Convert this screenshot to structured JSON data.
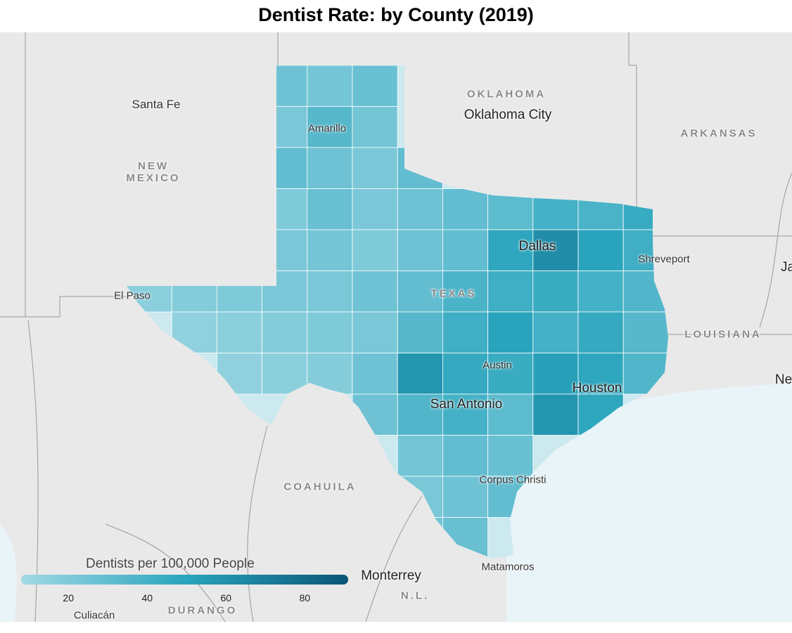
{
  "title": "Dentist Rate: by County (2019)",
  "places": [
    "Santa Fe",
    "NEW MEXICO",
    "OKLAHOMA",
    "Oklahoma City",
    "ARKANSAS",
    "Amarillo",
    "Dallas",
    "Shreveport",
    "El Paso",
    "TEXAS",
    "LOUISIANA",
    "Austin",
    "Houston",
    "San Antonio",
    "Corpus Christi",
    "Matamoros",
    "COAHUILA",
    "Monterrey",
    "N.L.",
    "DURANGO",
    "Culiacán",
    "Ja",
    "Ne"
  ],
  "legend": {
    "title": "Dentists per 100,000 People",
    "range": [
      8,
      91
    ],
    "ticks": [
      20,
      40,
      60,
      80
    ],
    "colors": [
      "#a2d9e5",
      "#2aa5bd",
      "#0b5577"
    ]
  },
  "cells": [
    [
      null,
      null,
      null,
      26,
      24,
      28,
      null,
      null,
      null,
      null,
      null,
      null
    ],
    [
      null,
      null,
      null,
      22,
      34,
      24,
      null,
      null,
      null,
      null,
      null,
      null
    ],
    [
      null,
      null,
      null,
      30,
      26,
      22,
      30,
      null,
      null,
      null,
      null,
      null
    ],
    [
      null,
      null,
      null,
      20,
      28,
      22,
      26,
      30,
      32,
      40,
      38,
      45
    ],
    [
      null,
      null,
      null,
      22,
      24,
      20,
      26,
      30,
      48,
      62,
      50,
      42
    ],
    [
      16,
      18,
      20,
      22,
      22,
      26,
      30,
      38,
      42,
      44,
      40,
      36
    ],
    [
      null,
      14,
      16,
      18,
      20,
      22,
      34,
      42,
      50,
      40,
      46,
      34
    ],
    [
      null,
      null,
      14,
      16,
      18,
      26,
      58,
      46,
      44,
      52,
      48,
      36
    ],
    [
      null,
      null,
      null,
      null,
      null,
      26,
      36,
      40,
      32,
      58,
      48,
      null
    ],
    [
      null,
      null,
      null,
      null,
      null,
      null,
      24,
      30,
      28,
      null,
      null,
      null
    ],
    [
      null,
      null,
      null,
      null,
      null,
      null,
      22,
      26,
      30,
      null,
      null,
      null
    ],
    [
      null,
      null,
      null,
      null,
      null,
      null,
      24,
      28,
      null,
      null,
      null,
      null
    ]
  ]
}
